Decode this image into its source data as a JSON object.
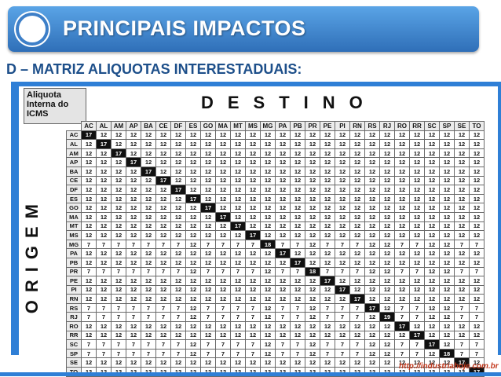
{
  "header": {
    "title": "PRINCIPAIS IMPACTOS"
  },
  "section": {
    "subtitle": "D – MATRIZ ALIQUOTAS INTERESTADUAIS:"
  },
  "matrix": {
    "corner_label": "Aliquota Interna do ICMS",
    "dest_label": "DESTINO",
    "origin_label": "ORIGEM",
    "states": [
      "AC",
      "AL",
      "AM",
      "AP",
      "BA",
      "CE",
      "DF",
      "ES",
      "GO",
      "MA",
      "MT",
      "MS",
      "MG",
      "PA",
      "PB",
      "PR",
      "PE",
      "PI",
      "RN",
      "RS",
      "RJ",
      "RO",
      "RR",
      "SC",
      "SP",
      "SE",
      "TO"
    ],
    "diag_values": [
      17,
      17,
      17,
      17,
      17,
      17,
      17,
      17,
      17,
      17,
      17,
      17,
      18,
      17,
      17,
      18,
      17,
      17,
      17,
      17,
      19,
      17,
      17,
      17,
      18,
      17,
      17
    ],
    "south_southeast_origin": [
      "MG",
      "PR",
      "RS",
      "RJ",
      "SC",
      "SP"
    ],
    "south_southeast_rate": 12,
    "other_rate": 7,
    "default_rate": 12
  },
  "footer": {
    "url": "http://industriahoje.com.br"
  },
  "colors": {
    "banner": "#2f6fb8",
    "frame": "#2f7fd6",
    "diag_bg": "#111111",
    "url": "#c43b1f"
  }
}
